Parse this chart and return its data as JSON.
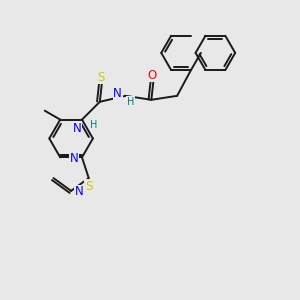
{
  "bg": "#e8e8e8",
  "bond_color": "#1a1a1a",
  "colors": {
    "O": "#ff0000",
    "N": "#0000ff",
    "S": "#cccc00",
    "H": "#008080",
    "C": "#1a1a1a"
  },
  "lw": 1.4,
  "dbl_off": 2.8
}
